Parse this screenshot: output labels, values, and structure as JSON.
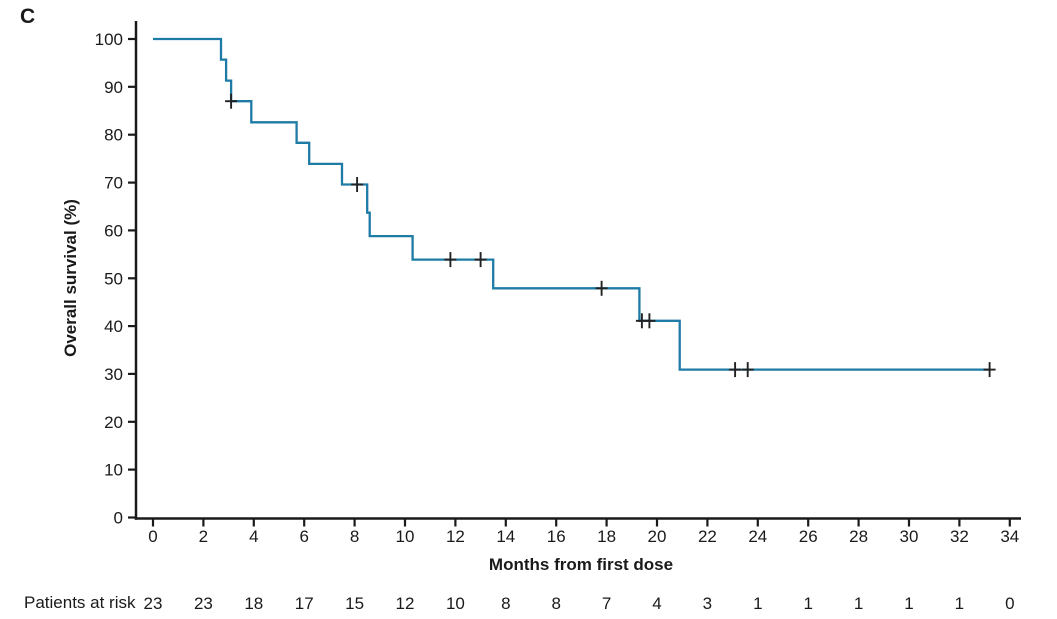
{
  "panel_label": "C",
  "chart_data": {
    "type": "line",
    "subtype": "kaplan-meier-step-curve",
    "title": "",
    "xlabel": "Months from first dose",
    "ylabel": "Overall survival (%)",
    "xlim": [
      0,
      34
    ],
    "ylim": [
      0,
      100
    ],
    "x_ticks": [
      0,
      2,
      4,
      6,
      8,
      10,
      12,
      14,
      16,
      18,
      20,
      22,
      24,
      26,
      28,
      30,
      32,
      34
    ],
    "y_ticks": [
      0,
      10,
      20,
      30,
      40,
      50,
      60,
      70,
      80,
      90,
      100
    ],
    "grid": false,
    "legend": "none",
    "series": [
      {
        "name": "Overall survival",
        "color": "#1e7ba6",
        "step_points": [
          [
            0,
            100
          ],
          [
            2.7,
            100
          ],
          [
            2.7,
            95.7
          ],
          [
            2.9,
            95.7
          ],
          [
            2.9,
            91.3
          ],
          [
            3.1,
            91.3
          ],
          [
            3.1,
            87.0
          ],
          [
            3.9,
            87.0
          ],
          [
            3.9,
            82.6
          ],
          [
            5.7,
            82.6
          ],
          [
            5.7,
            78.3
          ],
          [
            6.2,
            78.3
          ],
          [
            6.2,
            73.9
          ],
          [
            7.5,
            73.9
          ],
          [
            7.5,
            69.6
          ],
          [
            8.5,
            69.6
          ],
          [
            8.5,
            63.7
          ],
          [
            8.6,
            63.7
          ],
          [
            8.6,
            58.8
          ],
          [
            10.3,
            58.8
          ],
          [
            10.3,
            53.9
          ],
          [
            13.5,
            53.9
          ],
          [
            13.5,
            47.9
          ],
          [
            19.3,
            47.9
          ],
          [
            19.3,
            41.1
          ],
          [
            20.9,
            41.1
          ],
          [
            20.9,
            30.9
          ],
          [
            33.2,
            30.9
          ]
        ],
        "censor_marks": [
          [
            3.1,
            87.0
          ],
          [
            8.1,
            69.6
          ],
          [
            11.8,
            53.9
          ],
          [
            13.0,
            53.9
          ],
          [
            17.8,
            47.9
          ],
          [
            19.4,
            41.1
          ],
          [
            19.7,
            41.1
          ],
          [
            23.1,
            30.9
          ],
          [
            23.6,
            30.9
          ],
          [
            33.2,
            30.9
          ]
        ]
      }
    ]
  },
  "risk_table": {
    "label": "Patients at risk",
    "times": [
      0,
      2,
      4,
      6,
      8,
      10,
      12,
      14,
      16,
      18,
      20,
      22,
      24,
      26,
      28,
      30,
      32,
      34
    ],
    "counts": [
      23,
      23,
      18,
      17,
      15,
      12,
      10,
      8,
      8,
      7,
      4,
      3,
      1,
      1,
      1,
      1,
      1,
      0
    ]
  },
  "colors": {
    "curve": "#1e7ba6",
    "axis": "#1a1a1a",
    "text": "#1a1a1a",
    "censor": "#222222",
    "background": "#ffffff"
  }
}
